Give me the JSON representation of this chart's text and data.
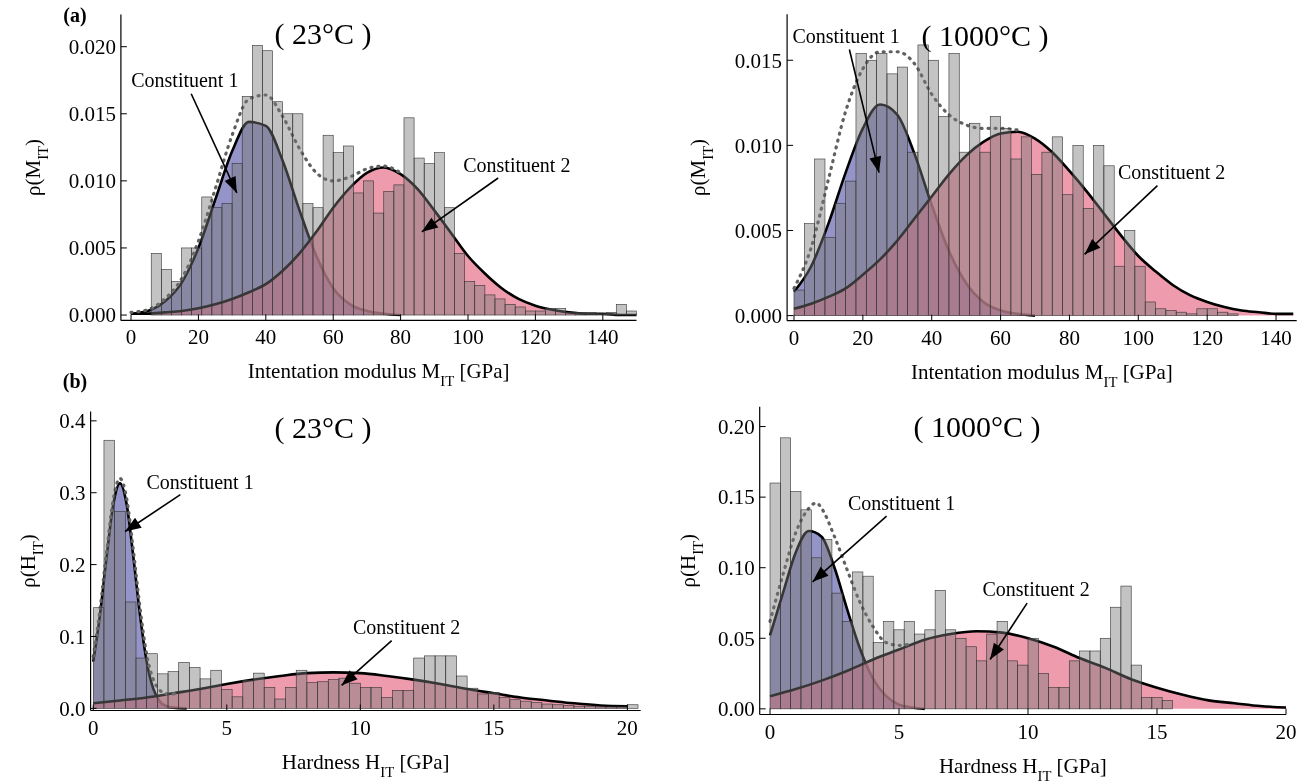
{
  "chart_data": [
    {
      "type": "histogram",
      "title": "( 23°C )",
      "xlabel": "Intentation modulus M$_{IT}$ [GPa]",
      "ylabel": "ρ(M$_{IT}$)",
      "color": "#7a7a7a",
      "bins": [
        6,
        9,
        12,
        15,
        18,
        21,
        24,
        27,
        30,
        33,
        36,
        39,
        42,
        45,
        48,
        51,
        54,
        57,
        60,
        63,
        66,
        69,
        72,
        75,
        78,
        81,
        84,
        87,
        90,
        93,
        96,
        99,
        102,
        105,
        108,
        111,
        114,
        117,
        120,
        123,
        126,
        129,
        132,
        135,
        138,
        141,
        144,
        147,
        150
      ],
      "values": [
        0.0046,
        0.0034,
        0.0025,
        0.005,
        0.005,
        0.0088,
        0.008,
        0.0083,
        0.0113,
        0.0163,
        0.0201,
        0.0197,
        0.0159,
        0.015,
        0.015,
        0.0083,
        0.008,
        0.0134,
        0.0121,
        0.0126,
        0.0091,
        0.01,
        0.0076,
        0.0092,
        0.0097,
        0.0147,
        0.0117,
        0.0113,
        0.0121,
        0.008,
        0.0046,
        0.0025,
        0.0022,
        0.0015,
        0.0012,
        0.0008,
        0.0006,
        0.0003,
        0.0003,
        0.0005,
        0.0005,
        0.0002,
        0.0002,
        0.0002,
        0.0001,
        0.0002,
        0.0008,
        0.0003
      ],
      "series": [
        {
          "type": "area",
          "color": "#6b6bb3",
          "x": [
            0,
            5,
            10,
            15,
            20,
            25,
            30,
            35,
            40,
            45,
            50,
            55,
            60,
            65,
            70,
            75,
            80
          ],
          "values": [
            0.0001,
            0.0003,
            0.001,
            0.0024,
            0.005,
            0.0086,
            0.0122,
            0.0144,
            0.0141,
            0.0115,
            0.0078,
            0.0044,
            0.002,
            0.0008,
            0.0003,
            0.0001,
            0
          ]
        },
        {
          "type": "area",
          "color": "#e8758d",
          "x": [
            0,
            5,
            10,
            15,
            20,
            25,
            30,
            35,
            40,
            45,
            50,
            55,
            60,
            65,
            70,
            75,
            80,
            85,
            90,
            95,
            100,
            105,
            110,
            115,
            120,
            125,
            130,
            135,
            140,
            145,
            150
          ],
          "values": [
            0.0001,
            0.0001,
            0.0002,
            0.0003,
            0.0005,
            0.0008,
            0.0012,
            0.0017,
            0.0023,
            0.0033,
            0.0046,
            0.0062,
            0.008,
            0.0095,
            0.0106,
            0.011,
            0.0105,
            0.0094,
            0.0078,
            0.0061,
            0.0044,
            0.0031,
            0.002,
            0.0012,
            0.0007,
            0.0004,
            0.0002,
            0.0001,
            0.0001,
            0,
            0
          ]
        },
        {
          "type": "line",
          "line_style": "dotted",
          "color": "#606060",
          "x": [
            0,
            5,
            10,
            15,
            20,
            25,
            30,
            35,
            40,
            45,
            50,
            55,
            60,
            65,
            70,
            75,
            80
          ],
          "values": [
            0.0002,
            0.0004,
            0.0012,
            0.0027,
            0.0055,
            0.0094,
            0.0134,
            0.0161,
            0.0164,
            0.0148,
            0.0124,
            0.0106,
            0.01,
            0.0103,
            0.0109,
            0.0111,
            0.0106
          ]
        }
      ],
      "xlim": [
        -3,
        150
      ],
      "xticks": [
        0,
        20,
        40,
        60,
        80,
        100,
        120,
        140
      ],
      "ylim": [
        -0.0004,
        0.0224
      ],
      "yticks": [
        {
          "value": 0,
          "label": "0.000"
        },
        {
          "value": 0.005,
          "label": "0.005"
        },
        {
          "value": 0.01,
          "label": "0.010"
        },
        {
          "value": 0.015,
          "label": "0.015"
        },
        {
          "value": 0.02,
          "label": "0.020"
        }
      ],
      "annotations": [
        "(a)",
        {
          "text": "Constituent 1",
          "x": 31.4,
          "y": 0.0091
        },
        {
          "text": "Constituent 2",
          "x": 86.3,
          "y": 0.0062
        }
      ]
    },
    {
      "type": "histogram",
      "title": "( 1000°C )",
      "xlabel": "Intentation modulus M$_{IT}$ [GPa]",
      "ylabel": "ρ(M$_{IT}$)",
      "color": "#7a7a7a",
      "bins": [
        0,
        3,
        6,
        9,
        12,
        15,
        18,
        21,
        24,
        27,
        30,
        33,
        36,
        39,
        42,
        45,
        48,
        51,
        54,
        57,
        60,
        63,
        66,
        69,
        72,
        75,
        78,
        81,
        84,
        87,
        90,
        93,
        96,
        99,
        102,
        105,
        108,
        111,
        114,
        117,
        120,
        123,
        126,
        129
      ],
      "values": [
        0.0015,
        0.0054,
        0.0092,
        0.0046,
        0.0066,
        0.0079,
        0.0154,
        0.015,
        0.0154,
        0.0142,
        0.0146,
        0.0096,
        0.0159,
        0.015,
        0.0117,
        0.0154,
        0.0096,
        0.0113,
        0.0096,
        0.0117,
        0.011,
        0.0092,
        0.0105,
        0.0083,
        0.0096,
        0.0105,
        0.0071,
        0.01,
        0.0063,
        0.01,
        0.0088,
        0.0029,
        0.005,
        0.0029,
        0.0008,
        0.0004,
        0.0003,
        0.0002,
        0.0001,
        0.0004,
        0.0004,
        0.0002,
        0.0001
      ],
      "series": [
        {
          "type": "area",
          "color": "#6b6bb3",
          "x": [
            0,
            5,
            10,
            15,
            20,
            25,
            30,
            35,
            40,
            45,
            50,
            55,
            60,
            65,
            70
          ],
          "values": [
            0.0014,
            0.0029,
            0.0054,
            0.0084,
            0.011,
            0.0124,
            0.0118,
            0.0095,
            0.0065,
            0.0038,
            0.0019,
            0.0008,
            0.0003,
            0.0001,
            0
          ]
        },
        {
          "type": "area",
          "color": "#e8758d",
          "x": [
            0,
            5,
            10,
            15,
            20,
            25,
            30,
            35,
            40,
            45,
            50,
            55,
            60,
            65,
            70,
            75,
            80,
            85,
            90,
            95,
            100,
            105,
            110,
            115,
            120,
            125,
            130,
            135,
            140,
            145
          ],
          "values": [
            0.0004,
            0.0007,
            0.0011,
            0.0016,
            0.0024,
            0.0033,
            0.0044,
            0.0057,
            0.007,
            0.0083,
            0.0094,
            0.0102,
            0.0107,
            0.0108,
            0.0104,
            0.0096,
            0.0085,
            0.0073,
            0.006,
            0.0047,
            0.0035,
            0.0026,
            0.0018,
            0.0012,
            0.0008,
            0.0005,
            0.0003,
            0.0002,
            0.0001,
            0.0001
          ]
        },
        {
          "type": "line",
          "line_style": "dotted",
          "color": "#606060",
          "x": [
            0,
            5,
            10,
            15,
            20,
            25,
            30,
            35,
            40,
            45,
            50,
            55,
            60,
            65
          ],
          "values": [
            0.0016,
            0.004,
            0.008,
            0.012,
            0.0145,
            0.0155,
            0.0155,
            0.0148,
            0.013,
            0.0118,
            0.0112,
            0.011,
            0.011,
            0.0109
          ]
        }
      ],
      "xlim": [
        -2,
        146
      ],
      "xticks": [
        0,
        20,
        40,
        60,
        80,
        100,
        120,
        140
      ],
      "ylim": [
        -0.0003,
        0.0177
      ],
      "yticks": [
        {
          "value": 0,
          "label": "0.000"
        },
        {
          "value": 0.005,
          "label": "0.005"
        },
        {
          "value": 0.01,
          "label": "0.010"
        },
        {
          "value": 0.015,
          "label": "0.015"
        }
      ],
      "annotations": [
        {
          "text": "Constituent 1",
          "x": 24.7,
          "y": 0.0084
        },
        {
          "text": "Constituent 2",
          "x": 84.4,
          "y": 0.0036
        }
      ]
    },
    {
      "type": "histogram",
      "title": "( 23°C )",
      "xlabel": "Hardness H$_{IT}$ [GPa]",
      "ylabel": "ρ(H$_{IT}$)",
      "color": "#7a7a7a",
      "bins": [
        0,
        0.4,
        0.8,
        1.2,
        1.6,
        2,
        2.4,
        2.8,
        3.2,
        3.6,
        4,
        4.4,
        4.8,
        5.2,
        5.6,
        6,
        6.4,
        6.8,
        7.2,
        7.6,
        8,
        8.4,
        8.8,
        9.2,
        9.6,
        10,
        10.4,
        10.8,
        11.2,
        11.6,
        12,
        12.4,
        12.8,
        13.2,
        13.6,
        14,
        14.4,
        14.8,
        15.2,
        15.6,
        16,
        16.4,
        16.8,
        17.2,
        17.6,
        18,
        18.4,
        18.8,
        19.2,
        19.6,
        20,
        20.4
      ],
      "values": [
        0.14,
        0.373,
        0.274,
        0.148,
        0.07,
        0.076,
        0.048,
        0.051,
        0.064,
        0.057,
        0.041,
        0.053,
        0.026,
        0.016,
        0.039,
        0.049,
        0.029,
        0.013,
        0.029,
        0.053,
        0.036,
        0.037,
        0.04,
        0.042,
        0.035,
        0.029,
        0.029,
        0.015,
        0.025,
        0.025,
        0.07,
        0.073,
        0.073,
        0.073,
        0.045,
        0.028,
        0.02,
        0.022,
        0.015,
        0.012,
        0.01,
        0.008,
        0.006,
        0.005,
        0.004,
        0.003,
        0.003,
        0.002,
        0.002,
        0.002,
        0.005
      ],
      "series": [
        {
          "type": "area",
          "color": "#6b6bb3",
          "x": [
            0,
            0.25,
            0.5,
            0.75,
            1,
            1.25,
            1.5,
            1.75,
            2,
            2.25,
            2.5,
            2.75,
            3,
            3.5
          ],
          "values": [
            0.065,
            0.13,
            0.211,
            0.284,
            0.313,
            0.284,
            0.211,
            0.13,
            0.065,
            0.027,
            0.009,
            0.003,
            0.001,
            0
          ]
        },
        {
          "type": "area",
          "color": "#e8758d",
          "x": [
            0,
            1,
            2,
            3,
            4,
            5,
            6,
            7,
            8,
            9,
            10,
            11,
            12,
            13,
            14,
            15,
            16,
            17,
            18,
            19,
            20
          ],
          "values": [
            0.007,
            0.011,
            0.015,
            0.021,
            0.027,
            0.034,
            0.04,
            0.045,
            0.049,
            0.05,
            0.049,
            0.045,
            0.04,
            0.034,
            0.027,
            0.021,
            0.015,
            0.011,
            0.007,
            0.004,
            0.003
          ]
        },
        {
          "type": "line",
          "line_style": "dotted",
          "color": "#606060",
          "x": [
            0,
            0.25,
            0.5,
            0.75,
            1,
            1.25,
            1.5,
            1.75,
            2,
            2.25,
            2.5,
            2.75,
            3,
            3.25
          ],
          "values": [
            0.072,
            0.137,
            0.218,
            0.291,
            0.32,
            0.292,
            0.22,
            0.14,
            0.075,
            0.04,
            0.025,
            0.02,
            0.02,
            0.022
          ]
        }
      ],
      "xlim": [
        -0.1,
        20.5
      ],
      "xticks": [
        0,
        5,
        10,
        15,
        20
      ],
      "ylim": [
        -0.003,
        0.413
      ],
      "yticks": [
        {
          "value": 0,
          "label": "0.0"
        },
        {
          "value": 0.1,
          "label": "0.1"
        },
        {
          "value": 0.2,
          "label": "0.2"
        },
        {
          "value": 0.3,
          "label": "0.3"
        },
        {
          "value": 0.4,
          "label": "0.4"
        }
      ],
      "annotations": [
        "(b)",
        {
          "text": "Constituent 1",
          "x": 1.19,
          "y": 0.246
        },
        {
          "text": "Constituent 2",
          "x": 9.3,
          "y": 0.032
        }
      ]
    },
    {
      "type": "histogram",
      "title": "( 1000°C )",
      "xlabel": "Hardness H$_{IT}$ [GPa]",
      "ylabel": "ρ(H$_{IT}$)",
      "color": "#7a7a7a",
      "bins": [
        0,
        0.4,
        0.8,
        1.2,
        1.6,
        2,
        2.4,
        2.8,
        3.2,
        3.6,
        4,
        4.4,
        4.8,
        5.2,
        5.6,
        6,
        6.4,
        6.8,
        7.2,
        7.6,
        8,
        8.4,
        8.8,
        9.2,
        9.6,
        10,
        10.4,
        10.8,
        11.2,
        11.6,
        12,
        12.4,
        12.8,
        13.2,
        13.6,
        14,
        14.4,
        14.8,
        15.2,
        15.6
      ],
      "values": [
        0.16,
        0.192,
        0.154,
        0.141,
        0.107,
        0.12,
        0.082,
        0.062,
        0.097,
        0.094,
        0.047,
        0.062,
        0.056,
        0.062,
        0.053,
        0.056,
        0.084,
        0.056,
        0.05,
        0.044,
        0.034,
        0.053,
        0.062,
        0.034,
        0.031,
        0.05,
        0.025,
        0.015,
        0.015,
        0.034,
        0.041,
        0.041,
        0.05,
        0.072,
        0.087,
        0.031,
        0.008,
        0.008,
        0.006
      ],
      "series": [
        {
          "type": "area",
          "color": "#6b6bb3",
          "x": [
            0,
            0.5,
            1,
            1.5,
            2,
            2.5,
            3,
            3.5,
            4,
            4.5,
            5,
            5.5,
            6
          ],
          "values": [
            0.052,
            0.082,
            0.111,
            0.126,
            0.122,
            0.1,
            0.07,
            0.042,
            0.021,
            0.009,
            0.003,
            0.001,
            0
          ]
        },
        {
          "type": "area",
          "color": "#e8758d",
          "x": [
            0,
            1,
            2,
            3,
            4,
            5,
            6,
            7,
            8,
            9,
            10,
            11,
            12,
            13,
            14,
            15,
            16,
            17,
            18,
            19,
            20
          ],
          "values": [
            0.009,
            0.014,
            0.02,
            0.027,
            0.035,
            0.042,
            0.049,
            0.053,
            0.055,
            0.054,
            0.05,
            0.044,
            0.036,
            0.029,
            0.021,
            0.015,
            0.01,
            0.006,
            0.004,
            0.002,
            0.001
          ]
        },
        {
          "type": "line",
          "line_style": "dotted",
          "color": "#606060",
          "x": [
            0,
            0.5,
            1,
            1.5,
            1.8,
            2,
            2.5,
            3,
            3.5,
            4,
            4.5,
            5,
            5.5
          ],
          "values": [
            0.062,
            0.095,
            0.125,
            0.142,
            0.146,
            0.142,
            0.122,
            0.098,
            0.075,
            0.058,
            0.047,
            0.045,
            0.046
          ]
        }
      ],
      "xlim": [
        -0.4,
        20
      ],
      "xticks": [
        0,
        5,
        10,
        15,
        20
      ],
      "ylim": [
        -0.004,
        0.214
      ],
      "yticks": [
        {
          "value": 0,
          "label": "0.00"
        },
        {
          "value": 0.05,
          "label": "0.05"
        },
        {
          "value": 0.1,
          "label": "0.10"
        },
        {
          "value": 0.15,
          "label": "0.15"
        },
        {
          "value": 0.2,
          "label": "0.20"
        }
      ],
      "annotations": [
        {
          "text": "Constituent 1",
          "x": 1.65,
          "y": 0.09
        },
        {
          "text": "Constituent 2",
          "x": 8.53,
          "y": 0.035
        }
      ]
    }
  ]
}
